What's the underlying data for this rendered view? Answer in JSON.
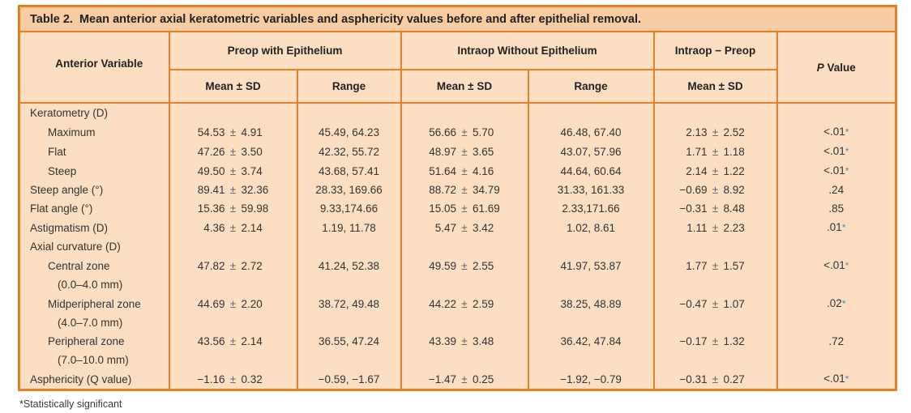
{
  "colors": {
    "border": "#e87f23",
    "title-bg": "#f8cda3",
    "cell-bg": "#fcdfc2",
    "text": "#333333",
    "sig": "#4191bd"
  },
  "table": {
    "title": "Table 2.  Mean anterior axial keratometric variables and asphericity values before and after epithelial removal.",
    "header": {
      "row_label": "Anterior Variable",
      "groups": [
        {
          "label": "Preop with Epithelium",
          "sub": [
            "Mean ± SD",
            "Range"
          ]
        },
        {
          "label": "Intraop Without Epithelium",
          "sub": [
            "Mean ± SD",
            "Range"
          ]
        },
        {
          "label": "Intraop − Preop",
          "sub": [
            "Mean ± SD"
          ]
        }
      ],
      "p_value": {
        "symbol": "P",
        "label": " Value"
      }
    },
    "rows": [
      {
        "label": "Keratometry (D)",
        "indent": 0,
        "cells": [
          "",
          "",
          "",
          "",
          ""
        ],
        "p": null
      },
      {
        "label": "Maximum",
        "indent": 1,
        "cells": [
          "54.53 ± 4.91",
          "45.49, 64.23",
          "56.66 ± 5.70",
          "46.48, 67.40",
          "2.13 ± 2.52"
        ],
        "p": {
          "text": "<.01",
          "significant": true
        }
      },
      {
        "label": "Flat",
        "indent": 1,
        "cells": [
          "47.26 ± 3.50",
          "42.32, 55.72",
          "48.97 ± 3.65",
          "43.07, 57.96",
          "1.71 ± 1.18"
        ],
        "p": {
          "text": "<.01",
          "significant": true
        }
      },
      {
        "label": "Steep",
        "indent": 1,
        "cells": [
          "49.50 ± 3.74",
          "43.68, 57.41",
          "51.64 ± 4.16",
          "44.64, 60.64",
          "2.14 ± 1.22"
        ],
        "p": {
          "text": "<.01",
          "significant": true
        }
      },
      {
        "label": "Steep angle (°)",
        "indent": 0,
        "cells": [
          "89.41 ± 32.36",
          "28.33, 169.66",
          "88.72 ± 34.79",
          "31.33, 161.33",
          "−0.69 ± 8.92"
        ],
        "p": {
          "text": ".24",
          "significant": false
        }
      },
      {
        "label": "Flat angle (°)",
        "indent": 0,
        "cells": [
          "15.36 ± 59.98",
          "9.33,174.66",
          "15.05 ± 61.69",
          "2.33,171.66",
          "−0.31 ± 8.48"
        ],
        "p": {
          "text": ".85",
          "significant": false
        }
      },
      {
        "label": "Astigmatism (D)",
        "indent": 0,
        "cells": [
          "4.36 ± 2.14",
          "1.19, 11.78",
          "5.47 ± 3.42",
          "1.02, 8.61",
          "1.11 ± 2.23"
        ],
        "p": {
          "text": ".01",
          "significant": true
        }
      },
      {
        "label": "Axial curvature (D)",
        "indent": 0,
        "cells": [
          "",
          "",
          "",
          "",
          ""
        ],
        "p": null
      },
      {
        "label": "Central zone",
        "indent": 1,
        "cells": [
          "47.82 ± 2.72",
          "41.24, 52.38",
          "49.59 ± 2.55",
          "41.97, 53.87",
          "1.77 ± 1.57"
        ],
        "p": {
          "text": "<.01",
          "significant": true
        }
      },
      {
        "label": "(0.0–4.0 mm)",
        "indent": 2,
        "cells": [
          "",
          "",
          "",
          "",
          ""
        ],
        "p": null
      },
      {
        "label": "Midperipheral zone",
        "indent": 1,
        "cells": [
          "44.69 ± 2.20",
          "38.72, 49.48",
          "44.22 ± 2.59",
          "38.25, 48.89",
          "−0.47 ± 1.07"
        ],
        "p": {
          "text": ".02",
          "significant": true
        }
      },
      {
        "label": "(4.0–7.0 mm)",
        "indent": 2,
        "cells": [
          "",
          "",
          "",
          "",
          ""
        ],
        "p": null
      },
      {
        "label": "Peripheral zone",
        "indent": 1,
        "cells": [
          "43.56 ± 2.14",
          "36.55, 47.24",
          "43.39 ± 3.48",
          "36.42, 47.84",
          "−0.17 ± 1.32"
        ],
        "p": {
          "text": ".72",
          "significant": false
        }
      },
      {
        "label": "(7.0–10.0 mm)",
        "indent": 2,
        "cells": [
          "",
          "",
          "",
          "",
          ""
        ],
        "p": null
      },
      {
        "label": "Asphericity (Q value)",
        "indent": 0,
        "cells": [
          "−1.16 ± 0.32",
          "−0.59, −1.67",
          "−1.47 ± 0.25",
          "−1.92, −0.79",
          "−0.31 ± 0.27"
        ],
        "p": {
          "text": "<.01",
          "significant": true
        }
      }
    ],
    "footnote": "*Statistically significant"
  }
}
